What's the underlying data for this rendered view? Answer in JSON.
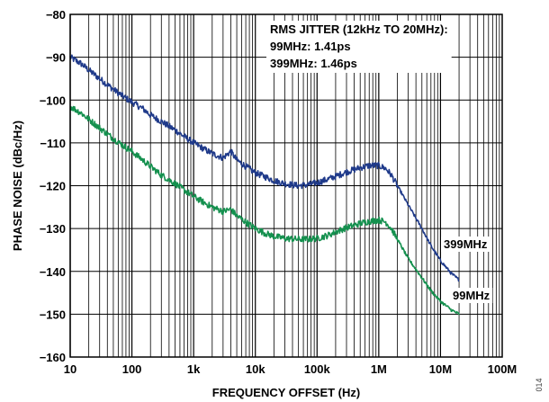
{
  "chart_data": {
    "type": "line",
    "xlabel": "FREQUENCY OFFSET (Hz)",
    "ylabel": "PHASE NOISE (dBc/Hz)",
    "x_scale": "log",
    "xlim": [
      10,
      100000000
    ],
    "ylim": [
      -160,
      -80
    ],
    "grid": true,
    "x_ticks": [
      10,
      100,
      1000,
      10000,
      100000,
      1000000,
      10000000,
      100000000
    ],
    "x_tick_labels": [
      "10",
      "100",
      "1k",
      "10k",
      "100k",
      "1M",
      "10M",
      "100M"
    ],
    "y_ticks": [
      -80,
      -90,
      -100,
      -110,
      -120,
      -130,
      -140,
      -150,
      -160
    ],
    "y_tick_labels": [
      "−80",
      "−90",
      "−100",
      "−110",
      "−120",
      "−130",
      "−140",
      "−150",
      "−160"
    ],
    "annotation_lines": [
      "RMS JITTER (12kHz TO 20MHz):",
      "99MHz: 1.41ps",
      "399MHz: 1.46ps"
    ],
    "figure_id": "014",
    "series": [
      {
        "name": "399MHz",
        "color": "#1f3a8a",
        "x": [
          10,
          15,
          20,
          30,
          50,
          70,
          100,
          150,
          200,
          300,
          500,
          700,
          1000,
          1500,
          2000,
          3000,
          4000,
          5000,
          7000,
          10000,
          15000,
          20000,
          30000,
          50000,
          70000,
          100000,
          150000,
          200000,
          300000,
          500000,
          700000,
          1000000,
          1300000,
          1600000,
          2000000,
          3000000,
          5000000,
          7000000,
          10000000,
          15000000,
          20000000
        ],
        "y": [
          -90,
          -91.5,
          -93,
          -95,
          -97.5,
          -99,
          -100.5,
          -102,
          -103.5,
          -105,
          -107,
          -108.5,
          -110,
          -111.5,
          -112.5,
          -113.5,
          -112,
          -114,
          -115.5,
          -117,
          -118,
          -118.8,
          -119.5,
          -120,
          -119.8,
          -119.3,
          -118.5,
          -117.8,
          -116.8,
          -115.8,
          -115.3,
          -115.3,
          -116,
          -117.5,
          -120,
          -124.5,
          -130,
          -134,
          -137.5,
          -140.5,
          -142
        ]
      },
      {
        "name": "99MHz",
        "color": "#14904e",
        "x": [
          10,
          15,
          20,
          30,
          50,
          70,
          100,
          150,
          200,
          300,
          500,
          700,
          1000,
          1500,
          2000,
          3000,
          4000,
          5000,
          7000,
          10000,
          15000,
          20000,
          30000,
          50000,
          70000,
          100000,
          150000,
          200000,
          300000,
          500000,
          700000,
          1000000,
          1300000,
          1600000,
          2000000,
          3000000,
          5000000,
          7000000,
          10000000,
          15000000,
          20000000
        ],
        "y": [
          -101.5,
          -103,
          -104.5,
          -106.5,
          -109,
          -110.5,
          -112,
          -114,
          -115.5,
          -117.5,
          -119.5,
          -121,
          -122.5,
          -124,
          -125,
          -126,
          -125.5,
          -127,
          -128.5,
          -130,
          -131.2,
          -131.8,
          -132.3,
          -132.5,
          -132.5,
          -132.3,
          -131.6,
          -130.8,
          -129.8,
          -128.8,
          -128.3,
          -128,
          -128.5,
          -130,
          -132.5,
          -137,
          -141.5,
          -144.5,
          -147,
          -149,
          -150
        ]
      }
    ]
  }
}
